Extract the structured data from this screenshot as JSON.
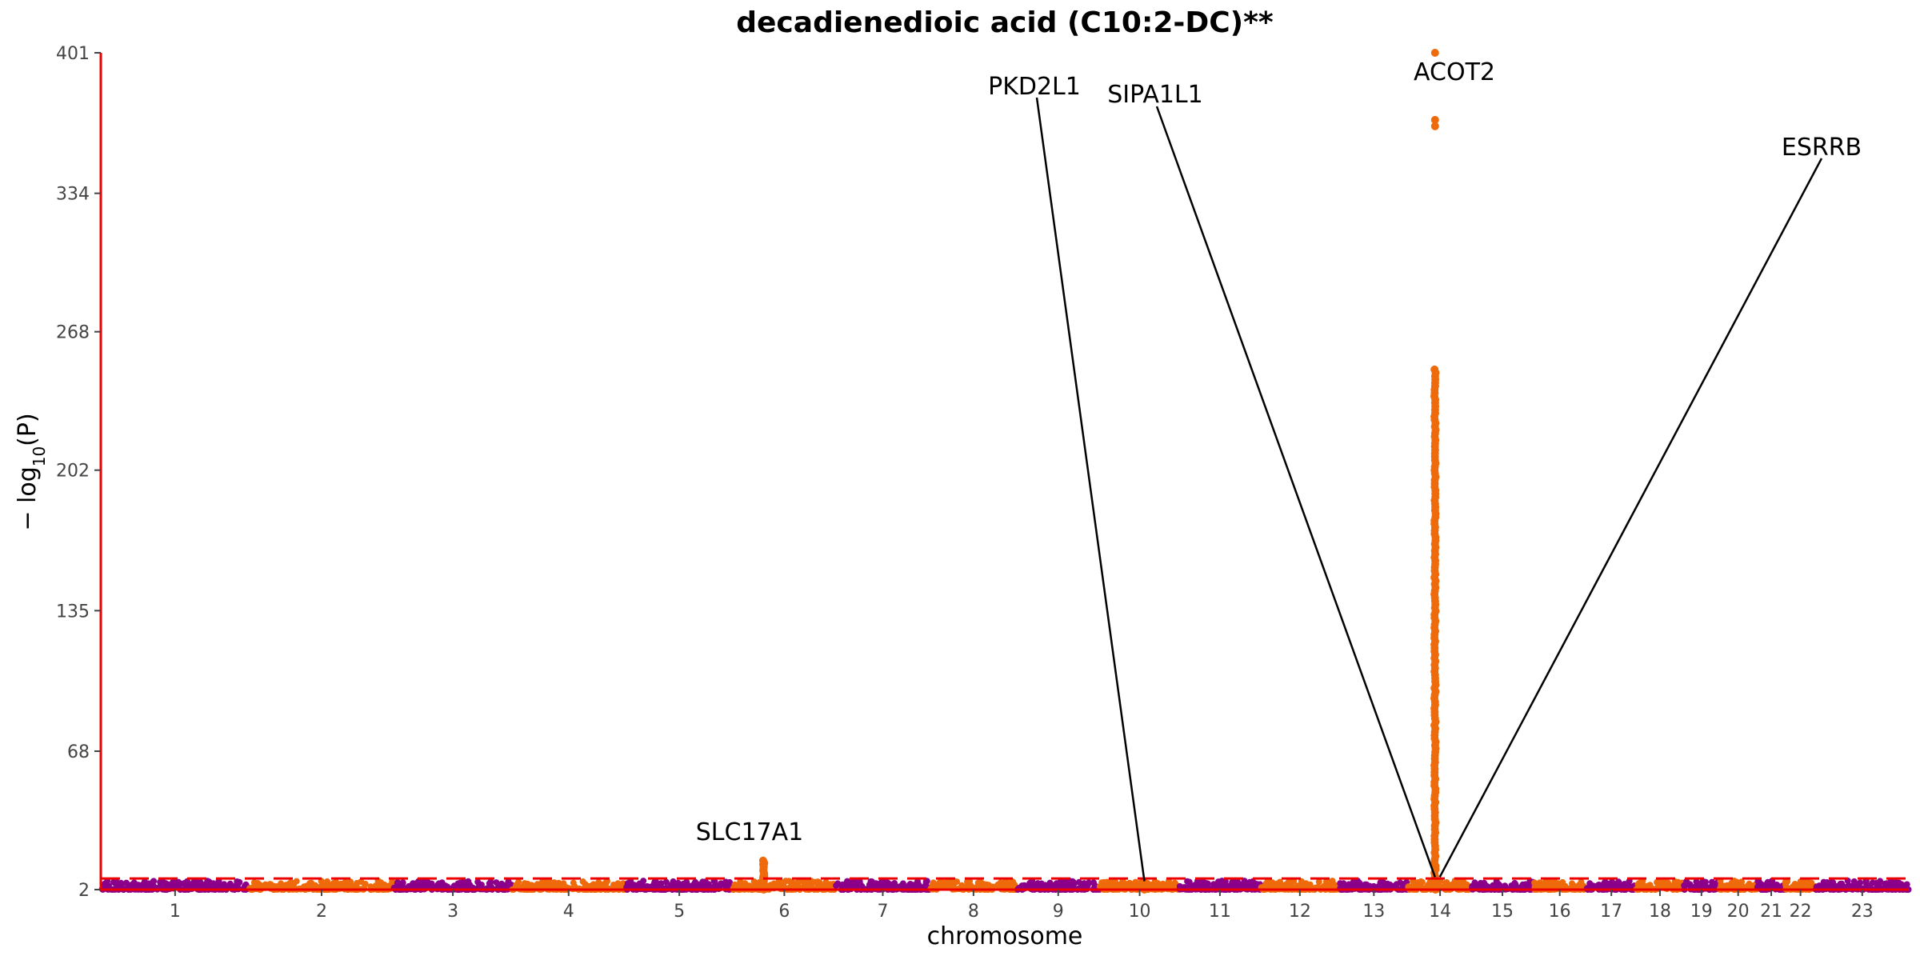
{
  "chart_data": {
    "type": "scatter",
    "subtype": "manhattan",
    "title": "decadienedioic acid (C10:2-DC)**",
    "xlabel": "chromosome",
    "ylabel": "− log10(P)",
    "ylim": [
      2,
      401
    ],
    "yticks": [
      2,
      68,
      135,
      202,
      268,
      334,
      401
    ],
    "significance_threshold": 7.3,
    "colors": {
      "odd_chromosome": "#8b008b",
      "even_chromosome": "#ee6a0a",
      "threshold_line": "#ee0000",
      "y_axis": "#ee0000",
      "annotation_line": "#000000"
    },
    "chromosomes": [
      {
        "label": "1",
        "start": 0,
        "end": 249
      },
      {
        "label": "2",
        "start": 249,
        "end": 491
      },
      {
        "label": "3",
        "start": 491,
        "end": 689
      },
      {
        "label": "4",
        "start": 689,
        "end": 879
      },
      {
        "label": "5",
        "start": 879,
        "end": 1060
      },
      {
        "label": "6",
        "start": 1060,
        "end": 1231
      },
      {
        "label": "7",
        "start": 1231,
        "end": 1390
      },
      {
        "label": "8",
        "start": 1390,
        "end": 1535
      },
      {
        "label": "9",
        "start": 1535,
        "end": 1674
      },
      {
        "label": "10",
        "start": 1674,
        "end": 1808
      },
      {
        "label": "11",
        "start": 1808,
        "end": 1943
      },
      {
        "label": "12",
        "start": 1943,
        "end": 2076
      },
      {
        "label": "13",
        "start": 2076,
        "end": 2191
      },
      {
        "label": "14",
        "start": 2191,
        "end": 2298
      },
      {
        "label": "15",
        "start": 2298,
        "end": 2400
      },
      {
        "label": "16",
        "start": 2400,
        "end": 2490
      },
      {
        "label": "17",
        "start": 2490,
        "end": 2573
      },
      {
        "label": "18",
        "start": 2573,
        "end": 2653
      },
      {
        "label": "19",
        "start": 2653,
        "end": 2712
      },
      {
        "label": "20",
        "start": 2712,
        "end": 2776
      },
      {
        "label": "21",
        "start": 2776,
        "end": 2823
      },
      {
        "label": "22",
        "start": 2823,
        "end": 2874
      },
      {
        "label": "23",
        "start": 2874,
        "end": 3030
      }
    ],
    "peaks": [
      {
        "chrom": "6",
        "pos": 1111,
        "max": 16,
        "color": "even_chromosome"
      },
      {
        "chrom": "10",
        "pos": 1749,
        "max": 6,
        "color": "even_chromosome"
      },
      {
        "chrom": "14",
        "pos": 2236,
        "max": 250,
        "color": "even_chromosome"
      }
    ],
    "top_hits": [
      {
        "chrom": "14",
        "pos": 2236,
        "value": 401
      },
      {
        "chrom": "14",
        "pos": 2236,
        "value": 369
      },
      {
        "chrom": "14",
        "pos": 2236,
        "value": 366
      }
    ],
    "annotations": [
      {
        "gene": "SLC17A1",
        "chrom": "6",
        "pos": 1111,
        "value": 16
      },
      {
        "gene": "PKD2L1",
        "chrom": "10",
        "pos": 1749,
        "value": 6
      },
      {
        "gene": "SIPA1L1",
        "chrom": "14",
        "pos": 2236,
        "value": 8
      },
      {
        "gene": "ACOT2",
        "chrom": "14",
        "pos": 2236,
        "value": 401
      },
      {
        "gene": "ESRRB",
        "chrom": "14",
        "pos": 2244,
        "value": 8
      }
    ]
  }
}
